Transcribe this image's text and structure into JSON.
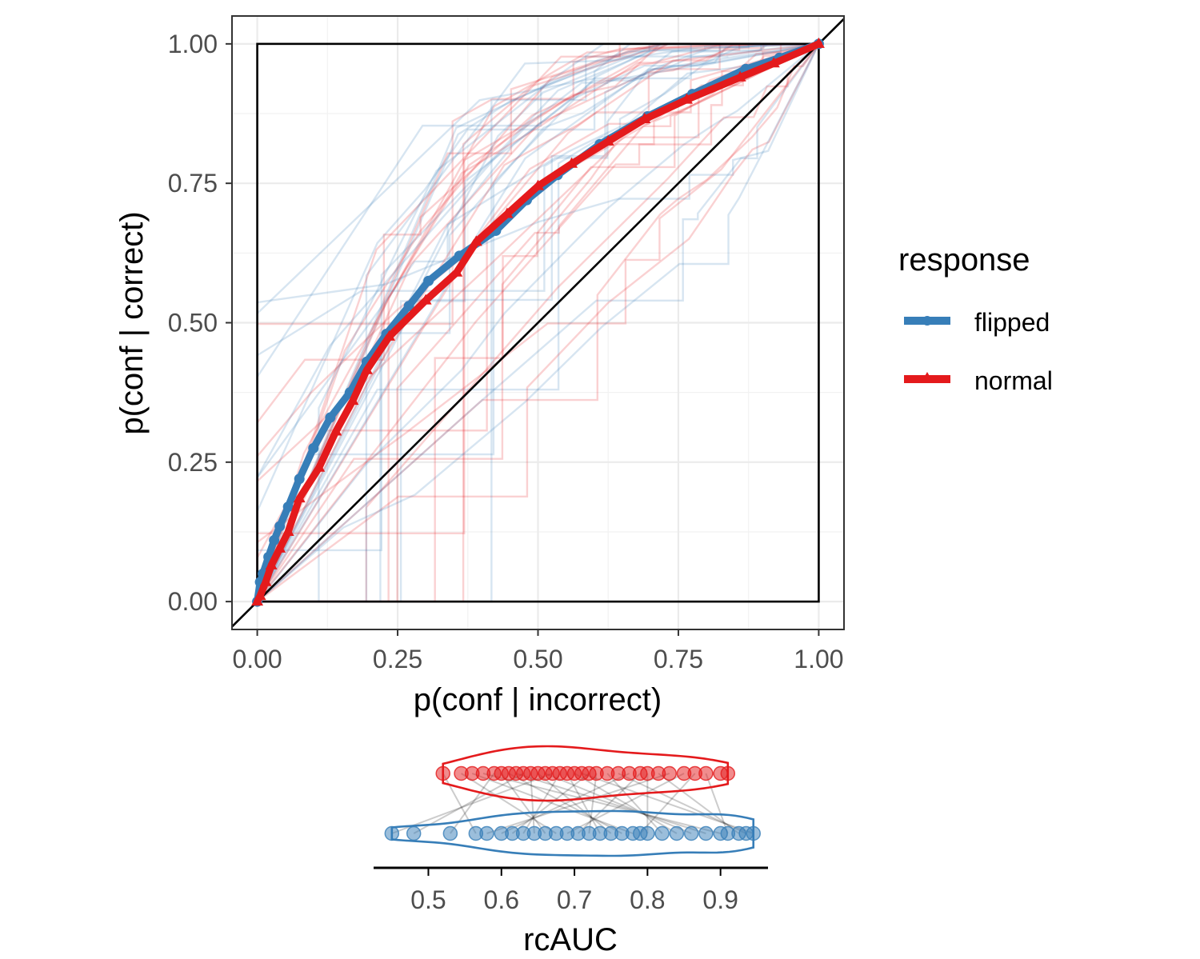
{
  "chart_data": [
    {
      "type": "line",
      "title": "",
      "xlabel": "p(conf | incorrect)",
      "ylabel": "p(conf | correct)",
      "xlim": [
        -0.045,
        1.045
      ],
      "ylim": [
        -0.05,
        1.05
      ],
      "x_ticks": [
        0,
        0.25,
        0.5,
        0.75,
        1
      ],
      "y_ticks": [
        0,
        0.25,
        0.5,
        0.75,
        1
      ],
      "x_tick_labels": [
        "0.00",
        "0.25",
        "0.50",
        "0.75",
        "1.00"
      ],
      "y_tick_labels": [
        "0.00",
        "0.25",
        "0.50",
        "0.75",
        "1.00"
      ],
      "grid": true,
      "reference_diagonal": true,
      "unit_square": true,
      "legend": {
        "title": "response",
        "position": "right",
        "entries": [
          {
            "label": "flipped",
            "color": "#377EB8",
            "marker": "circle"
          },
          {
            "label": "normal",
            "color": "#E41A1C",
            "marker": "triangle"
          }
        ]
      },
      "series": [
        {
          "name": "flipped",
          "color": "#377EB8",
          "marker": "circle",
          "x": [
            0,
            0.005,
            0.01,
            0.02,
            0.03,
            0.04,
            0.055,
            0.075,
            0.1,
            0.13,
            0.165,
            0.195,
            0.23,
            0.27,
            0.305,
            0.36,
            0.425,
            0.48,
            0.535,
            0.61,
            0.695,
            0.775,
            0.87,
            0.93,
            1
          ],
          "y": [
            0,
            0.035,
            0.05,
            0.08,
            0.11,
            0.135,
            0.17,
            0.22,
            0.275,
            0.33,
            0.375,
            0.43,
            0.48,
            0.53,
            0.575,
            0.62,
            0.665,
            0.72,
            0.765,
            0.82,
            0.87,
            0.91,
            0.955,
            0.975,
            1
          ]
        },
        {
          "name": "normal",
          "color": "#E41A1C",
          "marker": "triangle",
          "x": [
            0,
            0.005,
            0.015,
            0.025,
            0.04,
            0.055,
            0.075,
            0.11,
            0.14,
            0.17,
            0.195,
            0.235,
            0.3,
            0.355,
            0.39,
            0.445,
            0.5,
            0.56,
            0.625,
            0.69,
            0.765,
            0.86,
            0.92,
            1
          ],
          "y": [
            0,
            0.01,
            0.035,
            0.065,
            0.095,
            0.125,
            0.185,
            0.24,
            0.305,
            0.36,
            0.415,
            0.475,
            0.54,
            0.59,
            0.645,
            0.695,
            0.745,
            0.785,
            0.825,
            0.865,
            0.9,
            0.94,
            0.965,
            1
          ]
        }
      ]
    },
    {
      "type": "scatter",
      "title": "",
      "xlabel": "rcAUC",
      "xlim": [
        0.425,
        0.965
      ],
      "x_ticks": [
        0.5,
        0.6,
        0.7,
        0.8,
        0.9
      ],
      "x_tick_labels": [
        "0.5",
        "0.6",
        "0.7",
        "0.8",
        "0.9"
      ],
      "grid": false,
      "style": "paired violin with dots and connecting lines",
      "series": [
        {
          "name": "normal",
          "color": "#E41A1C",
          "values": [
            0.52,
            0.545,
            0.56,
            0.575,
            0.59,
            0.6,
            0.61,
            0.62,
            0.63,
            0.64,
            0.65,
            0.66,
            0.67,
            0.68,
            0.69,
            0.7,
            0.71,
            0.72,
            0.73,
            0.745,
            0.76,
            0.775,
            0.79,
            0.8,
            0.815,
            0.83,
            0.85,
            0.865,
            0.88,
            0.9,
            0.91
          ]
        },
        {
          "name": "flipped",
          "color": "#377EB8",
          "values": [
            0.45,
            0.48,
            0.53,
            0.565,
            0.58,
            0.6,
            0.615,
            0.63,
            0.645,
            0.66,
            0.675,
            0.69,
            0.705,
            0.72,
            0.735,
            0.75,
            0.765,
            0.78,
            0.79,
            0.8,
            0.82,
            0.84,
            0.86,
            0.88,
            0.9,
            0.91,
            0.925,
            0.935,
            0.945
          ]
        }
      ]
    }
  ]
}
